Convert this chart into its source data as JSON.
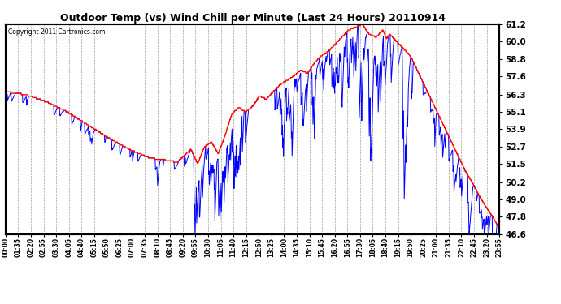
{
  "title": "Outdoor Temp (vs) Wind Chill per Minute (Last 24 Hours) 20110914",
  "copyright": "Copyright 2011 Cartronics.com",
  "ylabel_right_ticks": [
    61.2,
    60.0,
    58.8,
    57.6,
    56.3,
    55.1,
    53.9,
    52.7,
    51.5,
    50.2,
    49.0,
    47.8,
    46.6
  ],
  "ymin": 46.6,
  "ymax": 61.2,
  "color_temp": "#ff0000",
  "color_windchill": "#0000ff",
  "background_plot": "#ffffff",
  "background_fig": "#ffffff",
  "grid_color": "#aaaaaa",
  "x_tick_labels": [
    "00:00",
    "01:35",
    "02:20",
    "02:55",
    "03:30",
    "04:05",
    "04:40",
    "05:15",
    "05:50",
    "06:25",
    "07:00",
    "07:35",
    "08:10",
    "08:45",
    "09:20",
    "09:55",
    "10:30",
    "11:05",
    "11:40",
    "12:15",
    "12:50",
    "13:25",
    "14:00",
    "14:35",
    "15:10",
    "15:45",
    "16:20",
    "16:55",
    "17:30",
    "18:05",
    "18:40",
    "19:15",
    "19:50",
    "20:25",
    "21:00",
    "21:35",
    "22:10",
    "22:45",
    "23:20",
    "23:55"
  ],
  "temp_keypoints": [
    [
      0,
      56.5
    ],
    [
      60,
      56.3
    ],
    [
      120,
      55.8
    ],
    [
      180,
      55.1
    ],
    [
      240,
      54.2
    ],
    [
      300,
      53.3
    ],
    [
      360,
      52.5
    ],
    [
      420,
      51.9
    ],
    [
      480,
      51.7
    ],
    [
      500,
      51.6
    ],
    [
      540,
      52.5
    ],
    [
      560,
      51.5
    ],
    [
      580,
      52.7
    ],
    [
      600,
      53.0
    ],
    [
      620,
      52.2
    ],
    [
      640,
      53.5
    ],
    [
      660,
      55.0
    ],
    [
      680,
      55.4
    ],
    [
      700,
      55.1
    ],
    [
      720,
      55.5
    ],
    [
      740,
      56.2
    ],
    [
      760,
      56.0
    ],
    [
      780,
      56.5
    ],
    [
      800,
      57.0
    ],
    [
      820,
      57.3
    ],
    [
      840,
      57.6
    ],
    [
      860,
      58.0
    ],
    [
      880,
      57.8
    ],
    [
      900,
      58.5
    ],
    [
      920,
      59.0
    ],
    [
      940,
      59.3
    ],
    [
      960,
      59.8
    ],
    [
      980,
      60.3
    ],
    [
      1000,
      60.8
    ],
    [
      1020,
      61.0
    ],
    [
      1040,
      61.2
    ],
    [
      1060,
      60.5
    ],
    [
      1080,
      60.3
    ],
    [
      1100,
      60.8
    ],
    [
      1110,
      60.2
    ],
    [
      1120,
      60.5
    ],
    [
      1140,
      60.0
    ],
    [
      1160,
      59.5
    ],
    [
      1180,
      59.0
    ],
    [
      1200,
      58.0
    ],
    [
      1220,
      57.0
    ],
    [
      1240,
      56.0
    ],
    [
      1260,
      55.0
    ],
    [
      1280,
      54.0
    ],
    [
      1300,
      53.0
    ],
    [
      1320,
      52.0
    ],
    [
      1340,
      51.0
    ],
    [
      1360,
      50.2
    ],
    [
      1380,
      49.3
    ],
    [
      1400,
      48.5
    ],
    [
      1420,
      47.8
    ],
    [
      1439,
      47.0
    ]
  ]
}
